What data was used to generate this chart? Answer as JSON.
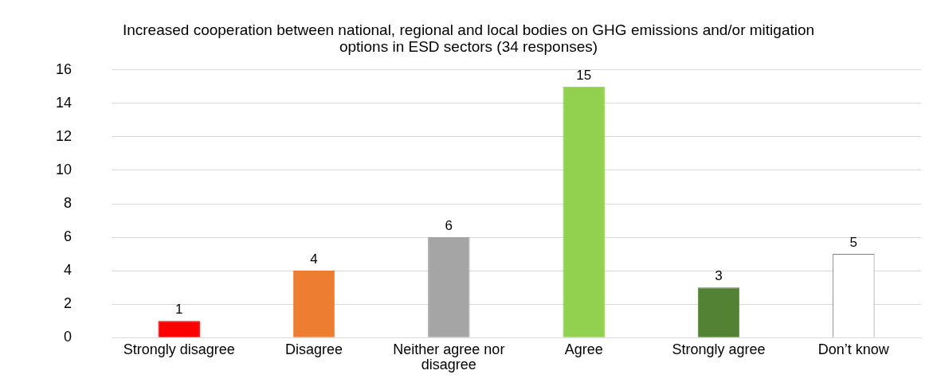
{
  "chart_data": {
    "type": "bar",
    "title": "Increased cooperation between national, regional and local bodies on GHG emissions and/or mitigation options in ESD sectors (34 responses)",
    "categories": [
      "Strongly disagree",
      "Disagree",
      "Neither agree nor disagree",
      "Agree",
      "Strongly agree",
      "Don’t know"
    ],
    "values": [
      1,
      4,
      6,
      15,
      3,
      5
    ],
    "colors": [
      "#ff0000",
      "#ed7d31",
      "#a5a5a5",
      "#92d050",
      "#548235",
      "#ffffff"
    ],
    "ylim": [
      0,
      16
    ],
    "yticks": [
      0,
      2,
      4,
      6,
      8,
      10,
      12,
      14,
      16
    ],
    "grid": "y",
    "data_labels": true,
    "legend": false
  }
}
